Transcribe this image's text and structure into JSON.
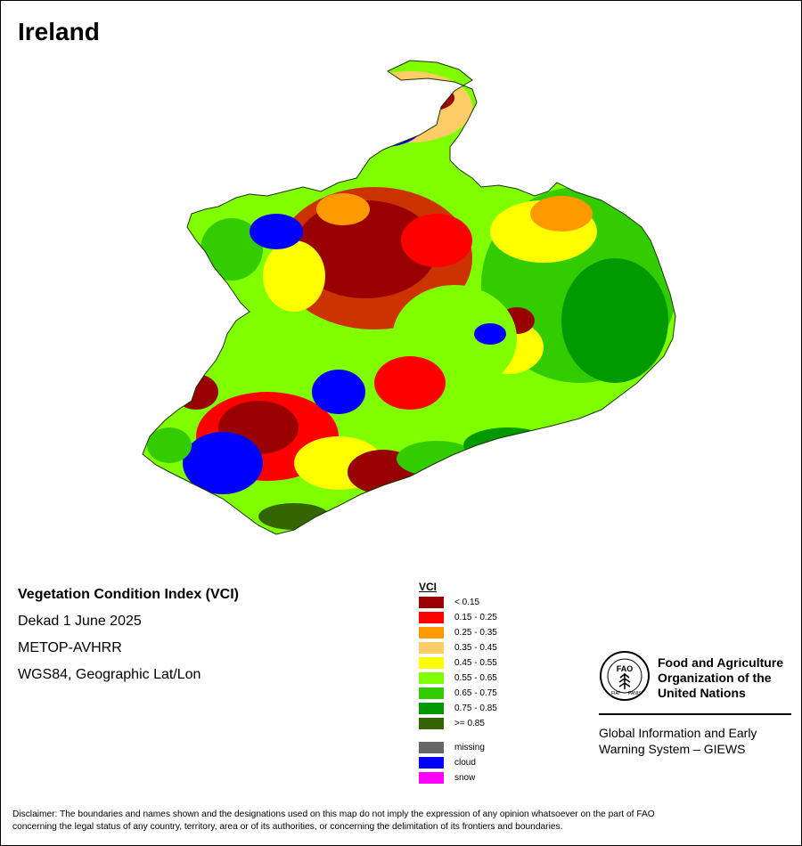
{
  "title": "Ireland",
  "info": {
    "index_name": "Vegetation Condition Index (VCI)",
    "period": "Dekad 1 June 2025",
    "sensor": "METOP-AVHRR",
    "projection": "WGS84, Geographic Lat/Lon"
  },
  "legend": {
    "title": "VCI",
    "classes": [
      {
        "label": "< 0.15",
        "color": "#990000"
      },
      {
        "label": "0.15 - 0.25",
        "color": "#ff0000"
      },
      {
        "label": "0.25 - 0.35",
        "color": "#ff9900"
      },
      {
        "label": "0.35 - 0.45",
        "color": "#ffcc66"
      },
      {
        "label": "0.45 - 0.55",
        "color": "#ffff00"
      },
      {
        "label": "0.55 - 0.65",
        "color": "#80ff00"
      },
      {
        "label": "0.65 - 0.75",
        "color": "#33cc00"
      },
      {
        "label": "0.75 - 0.85",
        "color": "#009900"
      },
      {
        "label": ">= 0.85",
        "color": "#336600"
      }
    ],
    "special": [
      {
        "label": "missing",
        "color": "#666666"
      },
      {
        "label": "cloud",
        "color": "#0000ff"
      },
      {
        "label": "snow",
        "color": "#ff00ff"
      }
    ]
  },
  "fao": {
    "emblem_icon": "fao-emblem-icon",
    "org_line1": "Food and Agriculture",
    "org_line2": "Organization of the",
    "org_line3": "United Nations",
    "giews_line1": "Global Information and Early",
    "giews_line2": "Warning System – GIEWS",
    "emblem_text_fiat": "FIAT",
    "emblem_text_panis": "PANIS"
  },
  "disclaimer_line1": "Disclaimer: The boundaries and names shown and the designations used on this map do not imply the expression of any opinion whatsoever on the part of FAO",
  "disclaimer_line2": "concerning the legal status of any country, territory, area or of its authorities, or concerning the delimitation of its frontiers and boundaries."
}
